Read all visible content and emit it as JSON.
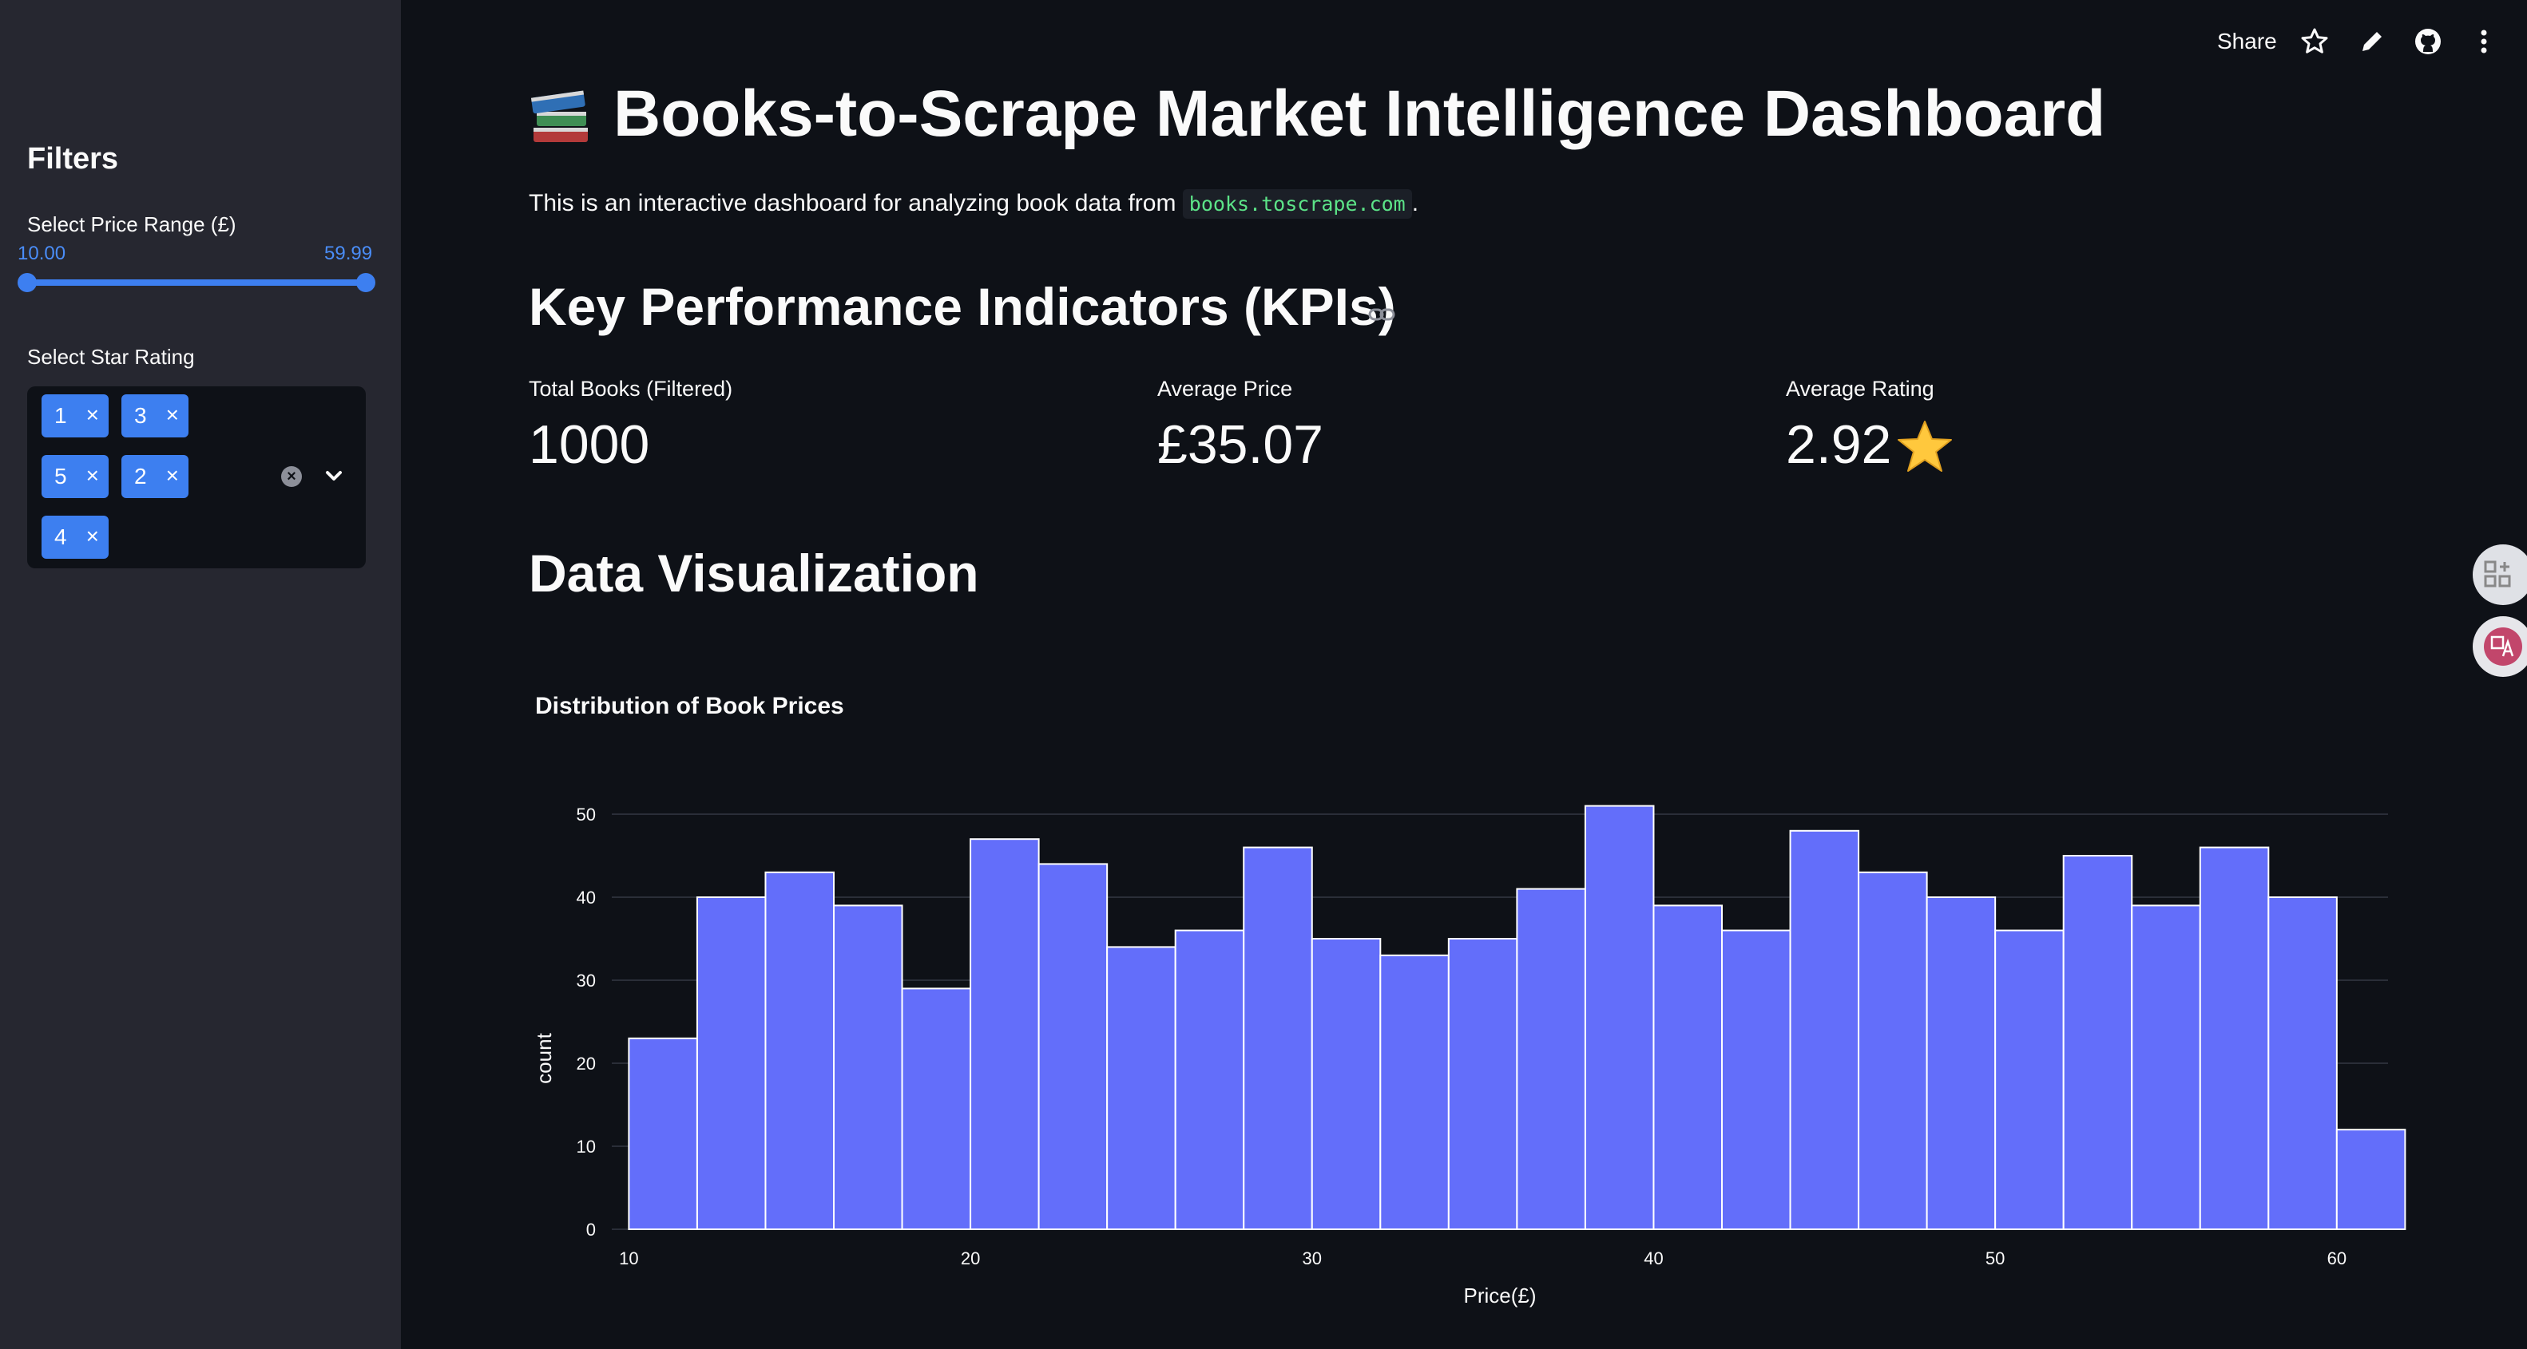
{
  "sidebar": {
    "title": "Filters",
    "price_range": {
      "label": "Select Price Range (£)",
      "min_display": "10.00",
      "max_display": "59.99",
      "min_value": 10.0,
      "max_value": 59.99
    },
    "star_rating": {
      "label": "Select Star Rating",
      "selected": [
        "1",
        "3",
        "5",
        "2",
        "4"
      ],
      "remove_glyph": "×"
    }
  },
  "toolbar": {
    "share_label": "Share",
    "icons": [
      "star-icon",
      "pencil-icon",
      "github-icon",
      "more-vertical-icon"
    ]
  },
  "main": {
    "title": "Books-to-Scrape Market Intelligence Dashboard",
    "title_icon": "books-icon",
    "intro_text": "This is an interactive dashboard for analyzing book data from",
    "intro_code": "books.toscrape.com",
    "intro_end": ".",
    "kpi_heading": "Key Performance Indicators (KPIs)",
    "kpis": [
      {
        "label": "Total Books (Filtered)",
        "value": "1000"
      },
      {
        "label": "Average Price",
        "value": "£35.07"
      },
      {
        "label": "Average Rating",
        "value": "2.92"
      }
    ],
    "viz_heading": "Data Visualization"
  },
  "chart_data": {
    "type": "bar",
    "title": "Distribution of Book Prices",
    "xlabel": "Price(£)",
    "ylabel": "count",
    "bin_start": 10,
    "bin_width": 2,
    "values": [
      23,
      40,
      43,
      39,
      29,
      47,
      44,
      34,
      36,
      46,
      35,
      33,
      35,
      41,
      51,
      39,
      36,
      48,
      43,
      40,
      36,
      45,
      39,
      46,
      40,
      12
    ],
    "xlim": [
      9.5,
      61.5
    ],
    "ylim": [
      0,
      50
    ],
    "x_ticks": [
      "10",
      "20",
      "30",
      "40",
      "50",
      "60"
    ],
    "y_ticks": [
      "0",
      "10",
      "20",
      "30",
      "40",
      "50"
    ],
    "bar_color": "#636efa",
    "grid": true
  },
  "colors": {
    "background": "#0e1117",
    "sidebar": "#262730",
    "accent": "#3d7ff0",
    "bar": "#636efa"
  }
}
